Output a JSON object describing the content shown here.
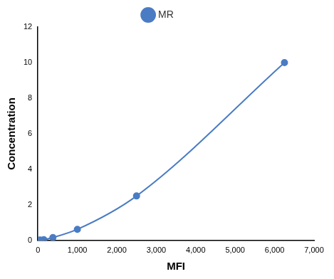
{
  "chart_data": {
    "type": "line",
    "x_label": "MFI",
    "y_label": "Concentration",
    "x": [
      25,
      60,
      150,
      380,
      1000,
      2500,
      6250
    ],
    "series": [
      {
        "name": "MR",
        "color": "#4a7cc4",
        "values": [
          0.01,
          0.025,
          0.04,
          0.16,
          0.625,
          2.5,
          10
        ]
      }
    ],
    "xlim": [
      0,
      7000
    ],
    "xticks": [
      0,
      1000,
      2000,
      3000,
      4000,
      5000,
      6000,
      7000
    ],
    "ylim": [
      0,
      12
    ],
    "yticks": [
      0,
      2,
      4,
      6,
      8,
      10,
      12
    ],
    "grid": false,
    "legend": "top",
    "marker": "circle",
    "line_style": "solid"
  }
}
